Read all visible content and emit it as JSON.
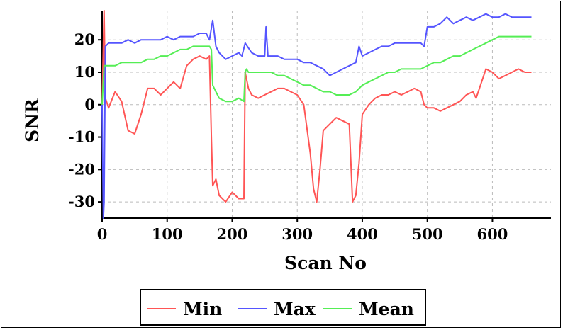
{
  "chart_data": {
    "type": "line",
    "title": "",
    "xlabel": "Scan No",
    "ylabel": "SNR",
    "xlim": [
      0,
      690
    ],
    "ylim": [
      -35,
      29
    ],
    "xticks": [
      0,
      100,
      200,
      300,
      400,
      500,
      600
    ],
    "yticks": [
      -30,
      -20,
      -10,
      0,
      10,
      20
    ],
    "grid": true,
    "legend_position": "bottom-center",
    "series": [
      {
        "name": "Min",
        "color": "#ff5555",
        "x": [
          0,
          3,
          5,
          10,
          20,
          30,
          40,
          50,
          60,
          70,
          80,
          90,
          100,
          110,
          120,
          130,
          140,
          150,
          160,
          165,
          168,
          170,
          175,
          180,
          190,
          200,
          210,
          218,
          220,
          225,
          230,
          240,
          250,
          260,
          270,
          280,
          290,
          300,
          310,
          320,
          325,
          330,
          335,
          340,
          350,
          360,
          370,
          380,
          385,
          390,
          395,
          400,
          410,
          420,
          430,
          440,
          450,
          460,
          470,
          480,
          490,
          495,
          500,
          510,
          520,
          530,
          540,
          550,
          560,
          570,
          575,
          580,
          590,
          600,
          610,
          620,
          630,
          640,
          650,
          660
        ],
        "values": [
          0,
          29,
          2,
          -1,
          4,
          1,
          -8,
          -9,
          -3,
          5,
          5,
          3,
          5,
          7,
          5,
          12,
          14,
          15,
          14,
          15,
          -10,
          -25,
          -23,
          -28,
          -30,
          -27,
          -29,
          -29,
          10,
          5,
          3,
          2,
          3,
          4,
          5,
          5,
          4,
          3,
          0,
          -15,
          -26,
          -30,
          -20,
          -8,
          -6,
          -4,
          -5,
          -6,
          -30,
          -28,
          -18,
          -3,
          0,
          2,
          3,
          3,
          4,
          3,
          4,
          5,
          4,
          0,
          -1,
          -1,
          -2,
          -1,
          0,
          1,
          3,
          4,
          2,
          5,
          11,
          10,
          8,
          9,
          10,
          11,
          10,
          10
        ]
      },
      {
        "name": "Max",
        "color": "#5555ff",
        "x": [
          0,
          2,
          3,
          5,
          10,
          20,
          30,
          40,
          50,
          60,
          70,
          80,
          90,
          100,
          110,
          120,
          130,
          140,
          150,
          160,
          165,
          170,
          175,
          180,
          190,
          200,
          210,
          215,
          220,
          230,
          240,
          250,
          252,
          255,
          260,
          270,
          280,
          290,
          300,
          310,
          320,
          330,
          340,
          350,
          360,
          370,
          380,
          390,
          395,
          400,
          410,
          420,
          430,
          440,
          450,
          460,
          470,
          480,
          490,
          495,
          500,
          510,
          520,
          530,
          540,
          550,
          560,
          570,
          580,
          590,
          600,
          610,
          620,
          630,
          640,
          650,
          660
        ],
        "values": [
          0,
          -35,
          -30,
          18,
          19,
          19,
          19,
          20,
          19,
          20,
          20,
          20,
          20,
          21,
          20,
          21,
          21,
          21,
          22,
          22,
          20,
          26,
          18,
          16,
          14,
          15,
          16,
          15,
          19,
          16,
          15,
          15,
          24,
          15,
          15,
          15,
          14,
          14,
          14,
          13,
          13,
          12,
          11,
          9,
          10,
          11,
          12,
          13,
          18,
          15,
          16,
          17,
          18,
          18,
          19,
          19,
          19,
          19,
          19,
          18,
          24,
          24,
          25,
          27,
          25,
          26,
          27,
          26,
          27,
          28,
          27,
          27,
          28,
          27,
          27,
          27,
          27
        ]
      },
      {
        "name": "Mean",
        "color": "#55ee55",
        "x": [
          0,
          3,
          5,
          10,
          20,
          30,
          40,
          50,
          60,
          70,
          80,
          90,
          100,
          110,
          120,
          130,
          140,
          150,
          160,
          165,
          168,
          170,
          175,
          180,
          190,
          200,
          210,
          218,
          220,
          222,
          225,
          230,
          240,
          250,
          260,
          270,
          280,
          290,
          300,
          310,
          320,
          330,
          340,
          350,
          360,
          370,
          380,
          390,
          400,
          410,
          420,
          430,
          440,
          450,
          460,
          470,
          480,
          490,
          500,
          510,
          520,
          530,
          540,
          550,
          560,
          570,
          580,
          590,
          600,
          610,
          620,
          630,
          640,
          650,
          660
        ],
        "values": [
          0,
          12,
          12,
          12,
          12,
          13,
          13,
          13,
          13,
          14,
          14,
          15,
          15,
          16,
          17,
          17,
          18,
          18,
          18,
          18,
          17,
          6,
          4,
          2,
          1,
          1,
          2,
          1,
          10,
          11,
          10,
          10,
          10,
          10,
          10,
          9,
          9,
          8,
          7,
          6,
          6,
          5,
          4,
          4,
          3,
          3,
          3,
          4,
          6,
          7,
          8,
          9,
          10,
          10,
          11,
          11,
          11,
          11,
          12,
          13,
          13,
          14,
          15,
          15,
          16,
          17,
          18,
          19,
          20,
          21,
          21,
          21,
          21,
          21,
          21
        ]
      }
    ]
  }
}
